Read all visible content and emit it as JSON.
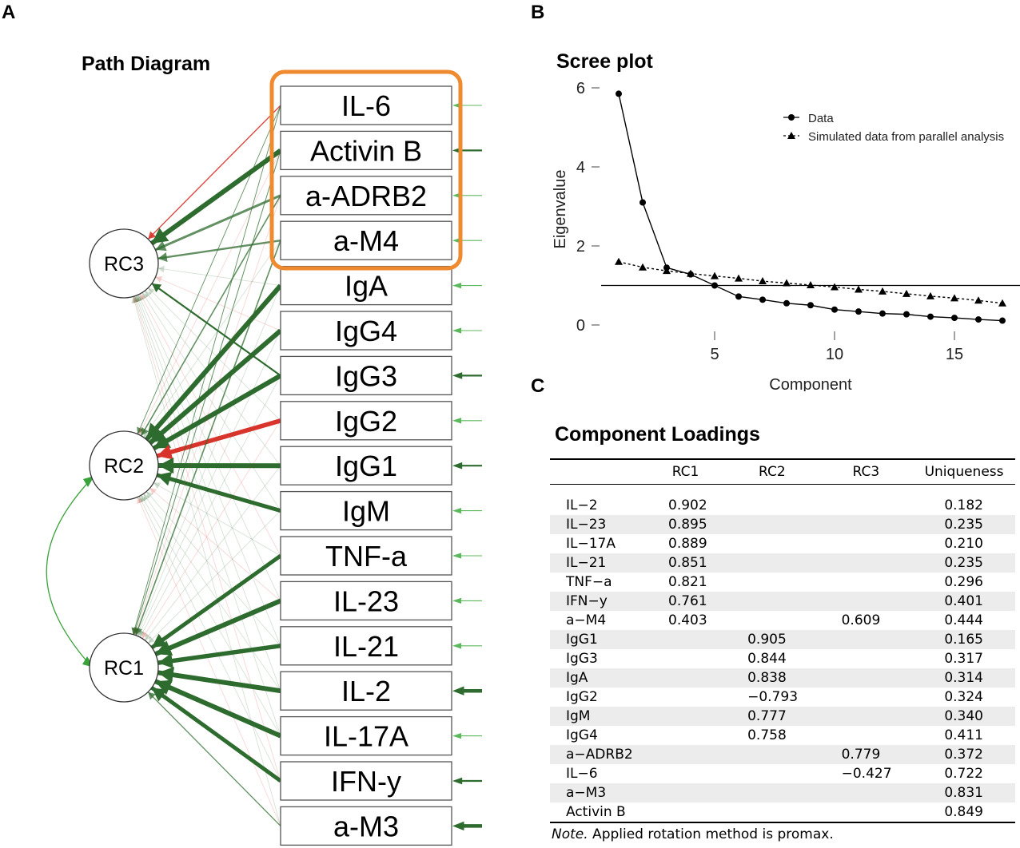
{
  "panels": {
    "a": "A",
    "b": "B",
    "c": "C"
  },
  "path_diagram": {
    "title": "Path Diagram",
    "factors": [
      "RC3",
      "RC2",
      "RC1"
    ],
    "variables": [
      "IL-6",
      "Activin B",
      "a-ADRB2",
      "a-M4",
      "IgA",
      "IgG4",
      "IgG3",
      "IgG2",
      "IgG1",
      "IgM",
      "TNF-a",
      "IL-23",
      "IL-21",
      "IL-2",
      "IL-17A",
      "IFN-y",
      "a-M3"
    ],
    "highlight_color": "#ef8a2f",
    "positive_color": "#2e6b2e",
    "negative_color": "#d9342b"
  },
  "chart_data": {
    "type": "line",
    "title": "Scree plot",
    "xlabel": "Component",
    "ylabel": "Eigenvalue",
    "xlim": [
      0,
      17.5
    ],
    "ylim": [
      0,
      6
    ],
    "xticks": [
      5,
      10,
      15
    ],
    "yticks": [
      0,
      2,
      4,
      6
    ],
    "reference_line": 1,
    "legend_position": "top-right",
    "series": [
      {
        "name": "Data",
        "marker": "circle",
        "style": "solid",
        "x": [
          1,
          2,
          3,
          4,
          5,
          6,
          7,
          8,
          9,
          10,
          11,
          12,
          13,
          14,
          15,
          16,
          17
        ],
        "values": [
          5.85,
          3.1,
          1.45,
          1.28,
          1.0,
          0.72,
          0.64,
          0.55,
          0.5,
          0.39,
          0.34,
          0.29,
          0.27,
          0.21,
          0.18,
          0.14,
          0.11
        ]
      },
      {
        "name": "Simulated data from parallel analysis",
        "marker": "triangle",
        "style": "dotted",
        "x": [
          1,
          2,
          3,
          4,
          5,
          6,
          7,
          8,
          9,
          10,
          11,
          12,
          13,
          14,
          15,
          16,
          17
        ],
        "values": [
          1.6,
          1.46,
          1.37,
          1.3,
          1.24,
          1.18,
          1.11,
          1.06,
          1.01,
          0.96,
          0.9,
          0.85,
          0.79,
          0.73,
          0.68,
          0.62,
          0.55
        ]
      }
    ]
  },
  "loadings": {
    "title": "Component Loadings",
    "headers": [
      "",
      "RC1",
      "RC2",
      "RC3",
      "Uniqueness"
    ],
    "rows": [
      [
        "IL−2",
        "0.902",
        "",
        "",
        "0.182"
      ],
      [
        "IL−23",
        "0.895",
        "",
        "",
        "0.235"
      ],
      [
        "IL−17A",
        "0.889",
        "",
        "",
        "0.210"
      ],
      [
        "IL−21",
        "0.851",
        "",
        "",
        "0.235"
      ],
      [
        "TNF−a",
        "0.821",
        "",
        "",
        "0.296"
      ],
      [
        "IFN−y",
        "0.761",
        "",
        "",
        "0.401"
      ],
      [
        "a−M4",
        "0.403",
        "",
        "0.609",
        "0.444"
      ],
      [
        "IgG1",
        "",
        "0.905",
        "",
        "0.165"
      ],
      [
        "IgG3",
        "",
        "0.844",
        "",
        "0.317"
      ],
      [
        "IgA",
        "",
        "0.838",
        "",
        "0.314"
      ],
      [
        "IgG2",
        "",
        "−0.793",
        "",
        "0.324"
      ],
      [
        "IgM",
        "",
        "0.777",
        "",
        "0.340"
      ],
      [
        "IgG4",
        "",
        "0.758",
        "",
        "0.411"
      ],
      [
        "a−ADRB2",
        "",
        "",
        "0.779",
        "0.372"
      ],
      [
        "IL−6",
        "",
        "",
        "−0.427",
        "0.722"
      ],
      [
        "a−M3",
        "",
        "",
        "",
        "0.831"
      ],
      [
        "Activin B",
        "",
        "",
        "",
        "0.849"
      ]
    ],
    "note_label": "Note.",
    "note_text": " Applied rotation method is promax."
  }
}
